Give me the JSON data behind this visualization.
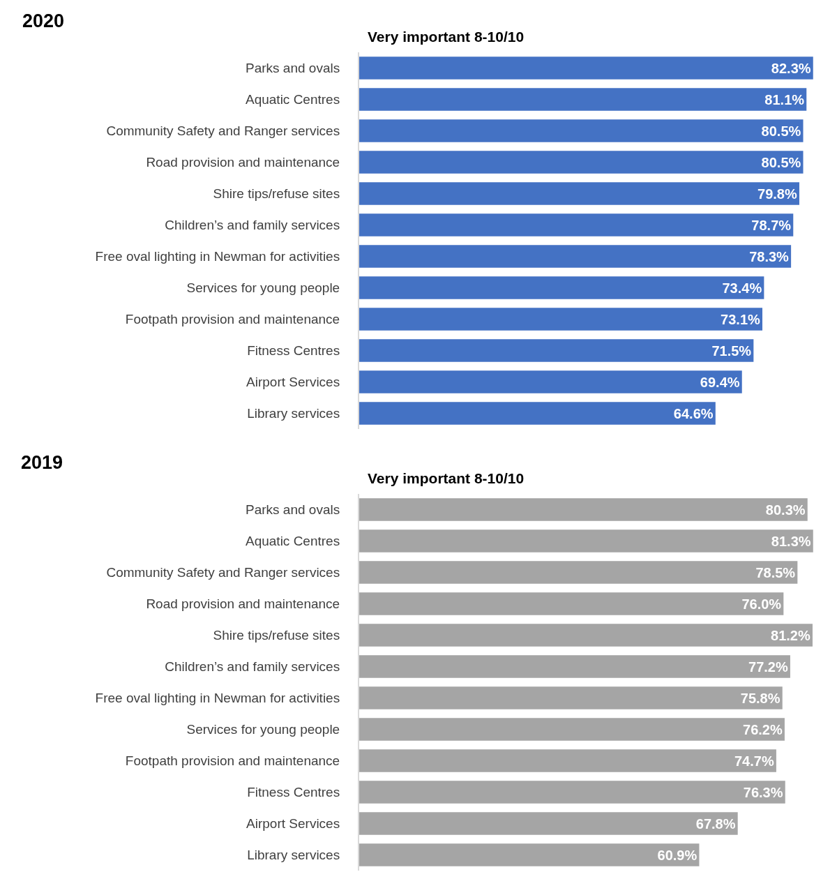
{
  "chart_data": [
    {
      "type": "bar",
      "orientation": "horizontal",
      "title": "2020",
      "subtitle": "Very important 8-10/10",
      "categories": [
        "Parks and ovals",
        "Aquatic Centres",
        "Community Safety and Ranger services",
        "Road provision and maintenance",
        "Shire tips/refuse sites",
        "Children’s and family services",
        "Free oval lighting in Newman for activities",
        "Services for young people",
        "Footpath provision and maintenance",
        "Fitness Centres",
        "Airport Services",
        "Library services"
      ],
      "values": [
        82.3,
        81.1,
        80.5,
        80.5,
        79.8,
        78.7,
        78.3,
        73.4,
        73.1,
        71.5,
        69.4,
        64.6
      ],
      "value_labels": [
        "82.3%",
        "81.1%",
        "80.5%",
        "80.5%",
        "79.8%",
        "78.7%",
        "78.3%",
        "73.4%",
        "73.1%",
        "71.5%",
        "69.4%",
        "64.6%"
      ],
      "color": "#4472c4"
    },
    {
      "type": "bar",
      "orientation": "horizontal",
      "title": "2019",
      "subtitle": "Very important 8-10/10",
      "categories": [
        "Parks and ovals",
        "Aquatic Centres",
        "Community Safety and Ranger services",
        "Road provision and maintenance",
        "Shire tips/refuse sites",
        "Children’s and family services",
        "Free oval lighting in Newman for activities",
        "Services for young people",
        "Footpath provision and maintenance",
        "Fitness Centres",
        "Airport Services",
        "Library services"
      ],
      "values": [
        80.3,
        81.3,
        78.5,
        76.0,
        81.2,
        77.2,
        75.8,
        76.2,
        74.7,
        76.3,
        67.8,
        60.9
      ],
      "value_labels": [
        "80.3%",
        "81.3%",
        "78.5%",
        "76.0%",
        "81.2%",
        "77.2%",
        "75.8%",
        "76.2%",
        "74.7%",
        "76.3%",
        "67.8%",
        "60.9%"
      ],
      "color": "#a5a5a5"
    }
  ]
}
